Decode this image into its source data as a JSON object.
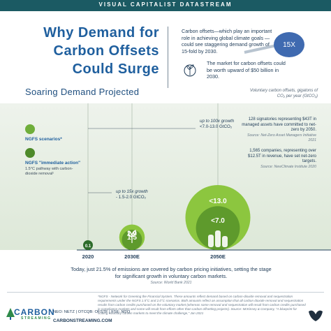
{
  "header": {
    "banner": "VISUAL CAPITALIST DATASTREAM"
  },
  "title_lines": [
    "Why Demand for",
    "Carbon Offsets",
    "Could Surge"
  ],
  "intro": {
    "text1": "Carbon offsets—which play an important role in achieving global climate goals —could see staggering demand growth of 15-fold by 2030.",
    "badge": "15X",
    "text2": "The market for carbon offsets could be worth upward of $50 billion in 2030."
  },
  "section_title": "Soaring Demand Projected",
  "legend_note": "Voluntary carbon offsets, gigatons of CO₂ per year (GtCO₂)",
  "annotations": {
    "growth_100x": "up to 100x growth",
    "growth_100x_range": "<7.0-13.0 GtCO₂",
    "growth_15x": "up to 15x growth",
    "growth_15x_range": "- 1.5-2.0 GtCO₂"
  },
  "legend": {
    "ngfs": "NGFS scenarios*",
    "ngfs_ia": "NGFS \"immediate action\"",
    "ngfs_ia_desc": "1.5°C pathway with carbon-dioxide removal¹"
  },
  "right_stats": {
    "stat1": "128 signatories representing $43T in managed assets have committed to net-zero by 2050.",
    "stat1_source": "Source: Net-Zero Asset Managers Initiative 2021",
    "stat2": "1,565 companies, representing over $12.5T in revenue, have set net-zero targets.",
    "stat2_source": "Source: NewClimate Institute 2020"
  },
  "chart_data": {
    "type": "bubble",
    "categories": [
      "2020",
      "2030E",
      "2050E"
    ],
    "series": [
      {
        "name": "NGFS scenarios*",
        "values": [
          0.1,
          2.0,
          13.0
        ],
        "labels": [
          "0.1",
          "2.0",
          "<13.0"
        ]
      },
      {
        "name": "NGFS \"immediate action\"",
        "values": [
          null,
          1.5,
          7.0
        ],
        "labels": [
          "",
          "1.5",
          "<7.0"
        ]
      }
    ],
    "colors": {
      "outer": "#8cc63f",
      "inner": "#5e9a2c",
      "point_2020": "#2d6b2a"
    }
  },
  "takeaway": "Today, just 21.5% of emissions are covered by carbon pricing initiatives, setting the stage for significant growth in voluntary carbon markets.",
  "takeaway_source": "Source: World Bank 2021",
  "footnote": "*NGFS - Network for Greening the Financial System. These amounts reflect demand based on carbon-dioxide removal and sequestration requirements under the NGFS 1.5°C and 2.0°C scenarios. Both amounts reflect an assumption that all carbon dioxide removal and sequestration results from carbon credits purchased on the voluntary market (whereas some removal and sequestration will result from carbon credits purchased in compliance markets and some will result from efforts other than carbon offsetting projects). Source: McKinsey & Company, \"A blueprint for scaling voluntary carbon markets to meet the climate challenge,\" Jan 2021",
  "footer": {
    "brand": "CARBON",
    "brand_sub": "STREAMING",
    "tickers": "NEO: NETZ | OTCQB: OFSTF | FSE: M2Q",
    "website": "CARBONSTREAMING.COM"
  }
}
